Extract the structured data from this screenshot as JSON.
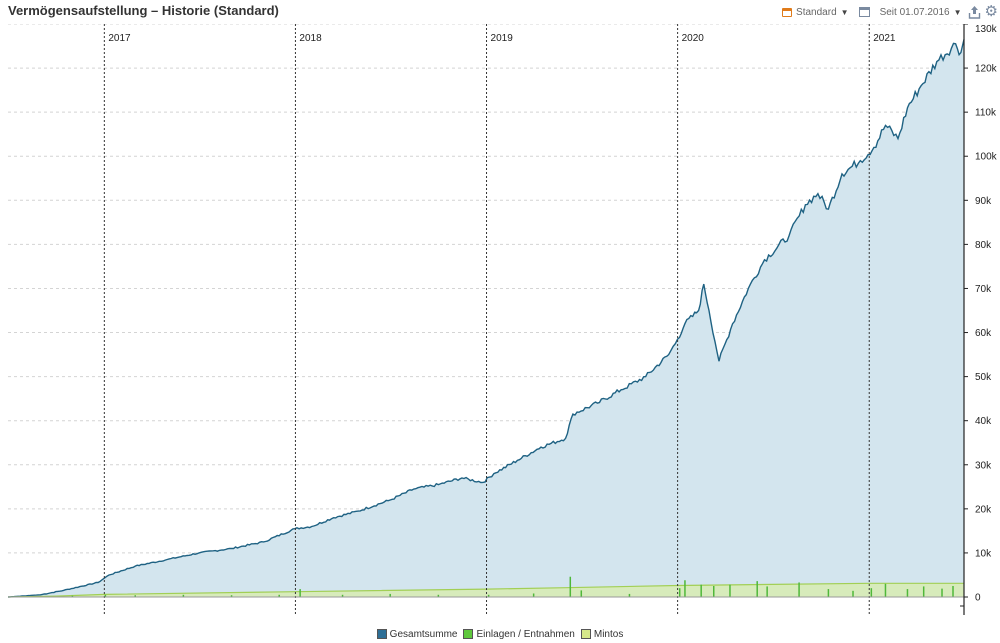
{
  "header": {
    "title": "Vermögensaufstellung – Historie (Standard)",
    "view_label": "Standard",
    "since_label": "Seit 01.07.2016"
  },
  "icons": {
    "view": "calendar-icon",
    "window": "window-icon",
    "since": "chevron-down-icon",
    "export": "export-icon",
    "settings": "gear-icon"
  },
  "colors": {
    "total_line": "#1f6283",
    "total_fill": "#d3e5ee",
    "deposits": "#4fb83a",
    "mintos_line": "#a2cf55",
    "mintos_fill": "#d7ebb5"
  },
  "chart_data": {
    "type": "area",
    "title": "Vermögensaufstellung – Historie (Standard)",
    "xlabel": "",
    "ylabel": "",
    "x_range": [
      "2016-07-01",
      "2021-07-01"
    ],
    "ylim": [
      0,
      130000
    ],
    "y_ticks": [
      0,
      10000,
      20000,
      30000,
      40000,
      50000,
      60000,
      70000,
      80000,
      90000,
      100000,
      110000,
      120000,
      130000
    ],
    "y_tick_labels": [
      "0",
      "10k",
      "20k",
      "30k",
      "40k",
      "50k",
      "60k",
      "70k",
      "80k",
      "90k",
      "100k",
      "110k",
      "120k",
      "130k"
    ],
    "year_markers": [
      {
        "date": "2017-01-01",
        "label": "2017"
      },
      {
        "date": "2018-01-01",
        "label": "2018"
      },
      {
        "date": "2019-01-01",
        "label": "2019"
      },
      {
        "date": "2020-01-01",
        "label": "2020"
      },
      {
        "date": "2021-01-01",
        "label": "2021"
      }
    ],
    "grid": true,
    "legend_position": "bottom",
    "series": [
      {
        "name": "Gesamtsumme",
        "kind": "area",
        "points": [
          [
            "2016-07-01",
            0
          ],
          [
            "2016-09-01",
            500
          ],
          [
            "2016-10-15",
            1500
          ],
          [
            "2016-12-20",
            3300
          ],
          [
            "2017-01-10",
            5000
          ],
          [
            "2017-03-01",
            7000
          ],
          [
            "2017-05-01",
            8500
          ],
          [
            "2017-07-01",
            10000
          ],
          [
            "2017-09-01",
            11000
          ],
          [
            "2017-11-01",
            12500
          ],
          [
            "2017-12-31",
            15500
          ],
          [
            "2018-02-01",
            16000
          ],
          [
            "2018-03-15",
            18000
          ],
          [
            "2018-05-01",
            19500
          ],
          [
            "2018-07-01",
            22000
          ],
          [
            "2018-08-15",
            24500
          ],
          [
            "2018-10-01",
            25500
          ],
          [
            "2018-11-15",
            27000
          ],
          [
            "2018-12-25",
            26000
          ],
          [
            "2019-01-15",
            28000
          ],
          [
            "2019-03-01",
            31000
          ],
          [
            "2019-04-15",
            34000
          ],
          [
            "2019-06-01",
            36000
          ],
          [
            "2019-06-15",
            41500
          ],
          [
            "2019-08-01",
            44000
          ],
          [
            "2019-09-15",
            47000
          ],
          [
            "2019-11-01",
            50000
          ],
          [
            "2019-12-15",
            55000
          ],
          [
            "2020-01-01",
            58500
          ],
          [
            "2020-01-15",
            62000
          ],
          [
            "2020-02-10",
            65000
          ],
          [
            "2020-02-20",
            71000
          ],
          [
            "2020-03-01",
            65000
          ],
          [
            "2020-03-20",
            53500
          ],
          [
            "2020-04-15",
            62000
          ],
          [
            "2020-05-15",
            70000
          ],
          [
            "2020-06-15",
            76500
          ],
          [
            "2020-08-01",
            82000
          ],
          [
            "2020-09-01",
            89000
          ],
          [
            "2020-09-25",
            91500
          ],
          [
            "2020-10-15",
            88000
          ],
          [
            "2020-11-10",
            96000
          ],
          [
            "2020-12-15",
            99000
          ],
          [
            "2021-01-10",
            102000
          ],
          [
            "2021-02-01",
            107000
          ],
          [
            "2021-02-25",
            104000
          ],
          [
            "2021-03-15",
            111000
          ],
          [
            "2021-04-10",
            116000
          ],
          [
            "2021-05-10",
            121500
          ],
          [
            "2021-06-15",
            125500
          ],
          [
            "2021-06-25",
            123500
          ],
          [
            "2021-07-01",
            126500
          ]
        ]
      },
      {
        "name": "Einlagen / Entnahmen",
        "kind": "spikes",
        "points": [
          [
            "2016-11-01",
            300
          ],
          [
            "2017-01-03",
            500
          ],
          [
            "2017-03-01",
            400
          ],
          [
            "2017-06-01",
            500
          ],
          [
            "2017-09-01",
            400
          ],
          [
            "2017-12-01",
            500
          ],
          [
            "2018-01-10",
            1800
          ],
          [
            "2018-04-01",
            500
          ],
          [
            "2018-07-01",
            700
          ],
          [
            "2018-10-01",
            500
          ],
          [
            "2019-01-05",
            500
          ],
          [
            "2019-04-01",
            800
          ],
          [
            "2019-06-10",
            4600
          ],
          [
            "2019-07-01",
            1500
          ],
          [
            "2019-10-01",
            700
          ],
          [
            "2020-01-05",
            2000
          ],
          [
            "2020-01-15",
            3800
          ],
          [
            "2020-02-15",
            2800
          ],
          [
            "2020-03-10",
            2500
          ],
          [
            "2020-04-10",
            2800
          ],
          [
            "2020-06-01",
            3600
          ],
          [
            "2020-06-20",
            2400
          ],
          [
            "2020-08-20",
            3300
          ],
          [
            "2020-10-15",
            1800
          ],
          [
            "2020-12-01",
            1400
          ],
          [
            "2021-01-05",
            2000
          ],
          [
            "2021-02-01",
            3000
          ],
          [
            "2021-03-15",
            1800
          ],
          [
            "2021-04-15",
            2400
          ],
          [
            "2021-05-20",
            1900
          ],
          [
            "2021-06-10",
            2500
          ]
        ]
      },
      {
        "name": "Mintos",
        "kind": "area",
        "points": [
          [
            "2016-07-01",
            0
          ],
          [
            "2016-10-01",
            200
          ],
          [
            "2017-01-01",
            600
          ],
          [
            "2018-01-01",
            1200
          ],
          [
            "2019-01-01",
            1800
          ],
          [
            "2019-06-01",
            2100
          ],
          [
            "2020-01-01",
            2600
          ],
          [
            "2021-01-01",
            3100
          ],
          [
            "2021-07-01",
            3100
          ]
        ]
      }
    ]
  }
}
